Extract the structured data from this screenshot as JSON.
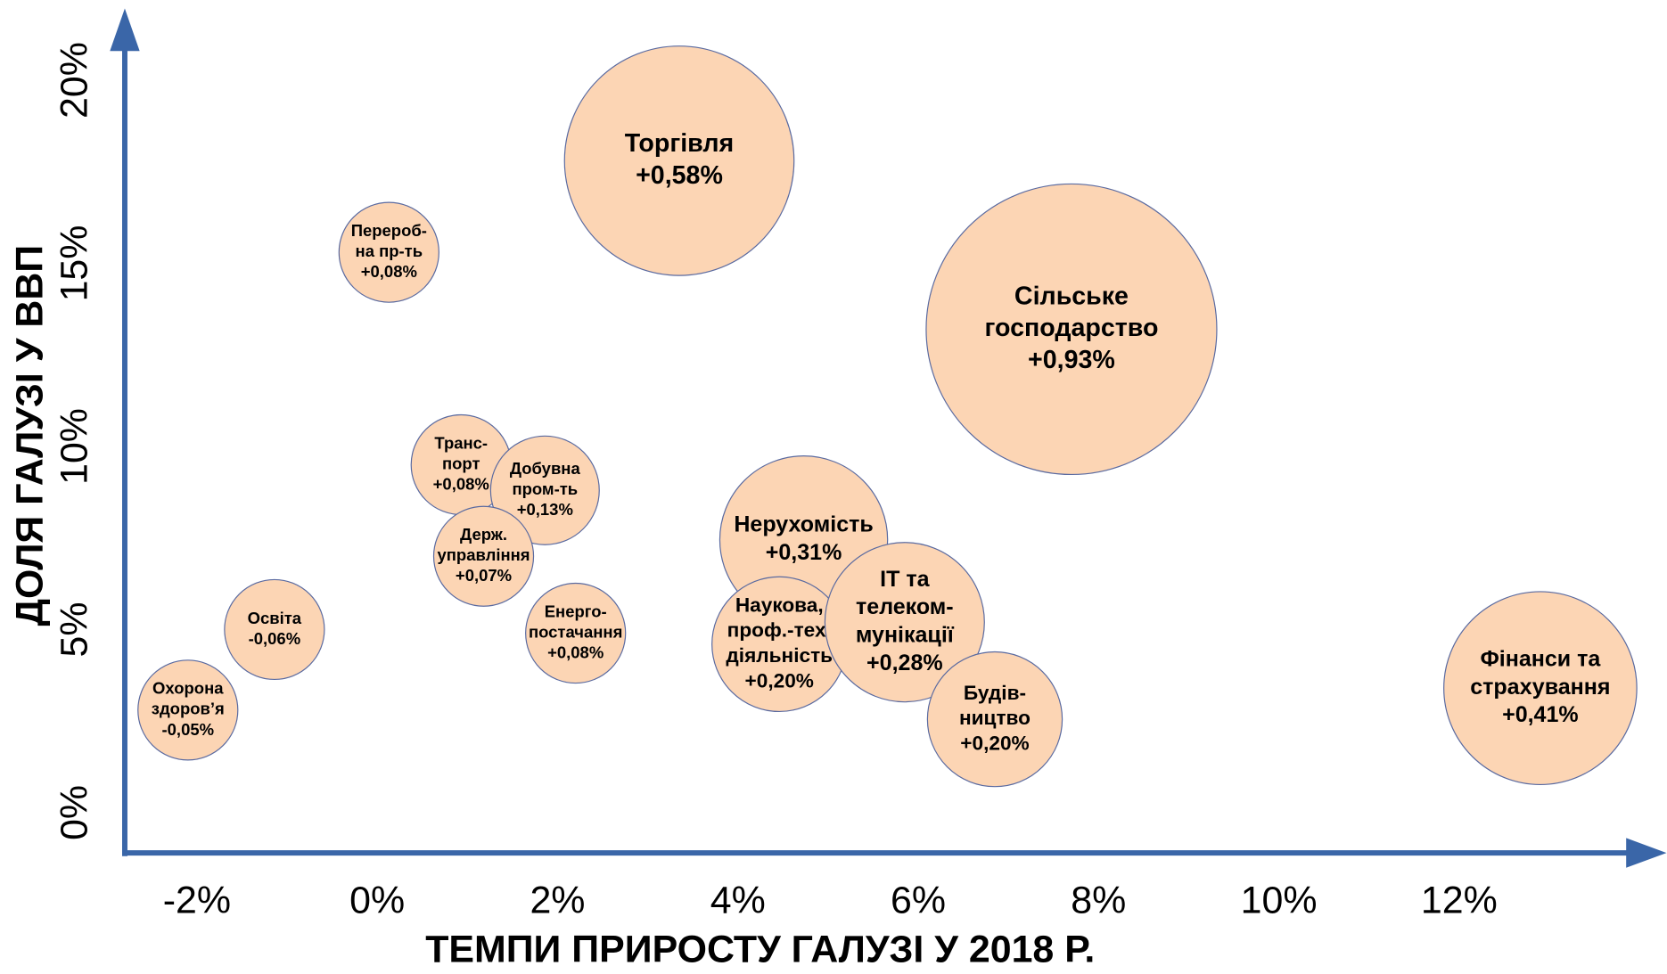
{
  "chart_data": {
    "type": "bubble",
    "xlabel": "ТЕМПИ ПРИРОСТУ ГАЛУЗІ У 2018 Р.",
    "ylabel": "ДОЛЯ ГАЛУЗІ У ВВП",
    "labels": [
      [
        "Торгівля"
      ],
      [
        "Сільське",
        "господарство"
      ],
      [
        "Перероб-",
        "на пр-ть"
      ],
      [
        "Охорона",
        "здоров’я"
      ],
      [
        "Освіта"
      ],
      [
        "Енерго-",
        "постачання"
      ],
      [
        "Транс-",
        "порт"
      ],
      [
        "Добувна",
        "пром-ть"
      ],
      [
        "Держ.",
        "управління"
      ],
      [
        "Нерухомість"
      ],
      [
        "Наукова,",
        "проф.-тех.",
        "діяльність"
      ],
      [
        "IT та",
        "телеком-",
        "мунікації"
      ],
      [
        "Будів-",
        "ництво"
      ],
      [
        "Фінанси та",
        "страхування"
      ]
    ],
    "x": [
      3.35,
      7.7,
      0.13,
      -2.1,
      -1.14,
      2.2,
      0.93,
      1.86,
      1.18,
      4.73,
      4.46,
      5.85,
      6.85,
      12.9
    ],
    "values": [
      17.8,
      13.2,
      15.3,
      2.8,
      5.0,
      4.9,
      9.5,
      8.8,
      7.0,
      7.45,
      4.6,
      5.2,
      2.55,
      3.4
    ],
    "sizes": [
      0.58,
      0.93,
      0.08,
      -0.05,
      -0.06,
      0.08,
      0.08,
      0.13,
      0.07,
      0.31,
      0.2,
      0.28,
      0.2,
      0.41
    ],
    "size_labels": [
      "+0,58%",
      "+0,93%",
      "+0,08%",
      "-0,05%",
      "-0,06%",
      "+0,08%",
      "+0,08%",
      "+0,13%",
      "+0,07%",
      "+0,31%",
      "+0,20%",
      "+0,28%",
      "+0,20%",
      "+0,41%"
    ],
    "color": "#fcd5b4",
    "xlim": [
      -2.8,
      14.3
    ],
    "ylim": [
      -1.1,
      21.9
    ],
    "xticks": [
      {
        "value": -2,
        "label": "-2%"
      },
      {
        "value": 0,
        "label": "0%"
      },
      {
        "value": 2,
        "label": "2%"
      },
      {
        "value": 4,
        "label": "4%"
      },
      {
        "value": 6,
        "label": "6%"
      },
      {
        "value": 8,
        "label": "8%"
      },
      {
        "value": 10,
        "label": "10%"
      },
      {
        "value": 12,
        "label": "12%"
      }
    ],
    "yticks": [
      {
        "value": 0,
        "label": "0%"
      },
      {
        "value": 5,
        "label": "5%"
      },
      {
        "value": 10,
        "label": "10%"
      },
      {
        "value": 15,
        "label": "15%"
      },
      {
        "value": 20,
        "label": "20%"
      }
    ]
  }
}
